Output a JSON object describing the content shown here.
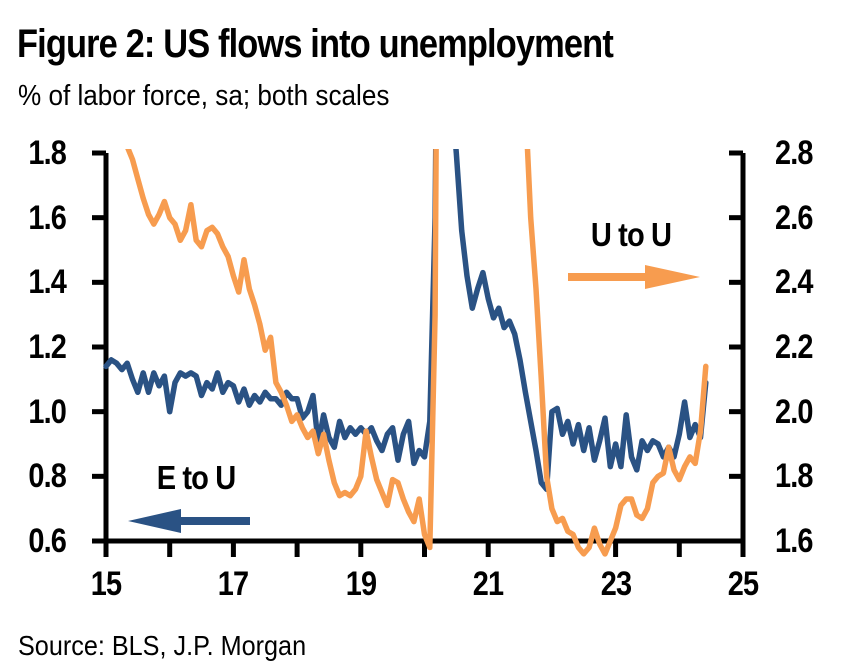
{
  "figure": {
    "title": "Figure 2: US flows into unemployment",
    "subtitle": "% of labor force, sa; both scales",
    "source": "Source: BLS, J.P. Morgan"
  },
  "colors": {
    "e_to_u_line": "#2A5284",
    "u_to_u_line": "#F79C4F",
    "axis": "#000000",
    "text": "#000000",
    "background": "#FFFFFF"
  },
  "chart_data": {
    "type": "line",
    "title": "Figure 2: US flows into unemployment",
    "subtitle": "% of labor force, sa; both scales",
    "grid": false,
    "legend_position": "in-plot arrow annotations",
    "x_axis": {
      "min": 15,
      "max": 25,
      "ticks": [
        {
          "value": 15,
          "label": "15"
        },
        {
          "value": 16,
          "label": ""
        },
        {
          "value": 17,
          "label": "17"
        },
        {
          "value": 18,
          "label": ""
        },
        {
          "value": 19,
          "label": "19"
        },
        {
          "value": 20,
          "label": ""
        },
        {
          "value": 21,
          "label": "21"
        },
        {
          "value": 22,
          "label": ""
        },
        {
          "value": 23,
          "label": "23"
        },
        {
          "value": 24,
          "label": ""
        },
        {
          "value": 25,
          "label": "25"
        }
      ]
    },
    "left_axis": {
      "min": 0.6,
      "max": 1.8,
      "ticks": [
        {
          "value": 1.8,
          "label": "1.8"
        },
        {
          "value": 1.6,
          "label": "1.6"
        },
        {
          "value": 1.4,
          "label": "1.4"
        },
        {
          "value": 1.2,
          "label": "1.2"
        },
        {
          "value": 1.0,
          "label": "1.0"
        },
        {
          "value": 0.8,
          "label": "0.8"
        },
        {
          "value": 0.6,
          "label": "0.6"
        }
      ]
    },
    "right_axis": {
      "min": 1.6,
      "max": 2.8,
      "ticks": [
        {
          "value": 2.8,
          "label": "2.8"
        },
        {
          "value": 2.6,
          "label": "2.6"
        },
        {
          "value": 2.4,
          "label": "2.4"
        },
        {
          "value": 2.2,
          "label": "2.2"
        },
        {
          "value": 2.0,
          "label": "2.0"
        },
        {
          "value": 1.8,
          "label": "1.8"
        },
        {
          "value": 1.6,
          "label": "1.6"
        }
      ]
    },
    "note": "Monthly data Jan-2015 to Jun-2024; values above axis maxima are clipped at the top of the plot (2020-21 COVID spike).",
    "series": [
      {
        "name": "E to U",
        "axis": "left",
        "color": "#2A5284",
        "x_start": 15.0,
        "x_step": 0.0833333,
        "values": [
          1.14,
          1.16,
          1.15,
          1.13,
          1.15,
          1.1,
          1.06,
          1.12,
          1.06,
          1.12,
          1.08,
          1.11,
          1.0,
          1.09,
          1.12,
          1.11,
          1.12,
          1.11,
          1.05,
          1.09,
          1.07,
          1.12,
          1.06,
          1.09,
          1.08,
          1.03,
          1.07,
          1.02,
          1.05,
          1.03,
          1.06,
          1.04,
          1.04,
          1.02,
          1.06,
          1.04,
          1.04,
          0.98,
          1.0,
          1.05,
          0.9,
          0.99,
          0.92,
          0.89,
          0.97,
          0.92,
          0.95,
          0.93,
          0.95,
          0.93,
          0.95,
          0.91,
          0.88,
          0.93,
          0.95,
          0.85,
          0.93,
          0.97,
          0.84,
          0.88,
          0.86,
          0.97,
          1.6,
          3.4,
          2.8,
          2.0,
          1.8,
          1.56,
          1.42,
          1.32,
          1.38,
          1.43,
          1.35,
          1.29,
          1.32,
          1.26,
          1.28,
          1.24,
          1.16,
          1.06,
          0.97,
          0.88,
          0.78,
          0.76,
          1.0,
          1.01,
          0.93,
          0.97,
          0.9,
          0.96,
          0.88,
          0.95,
          0.85,
          0.91,
          0.98,
          0.83,
          0.9,
          0.83,
          0.99,
          0.86,
          0.82,
          0.91,
          0.88,
          0.91,
          0.9,
          0.86,
          0.89,
          0.86,
          0.93,
          1.03,
          0.92,
          0.96,
          0.92,
          1.09
        ]
      },
      {
        "name": "U to U",
        "axis": "right",
        "color": "#F79C4F",
        "x_start": 15.0,
        "x_step": 0.0833333,
        "values": [
          2.96,
          2.93,
          2.9,
          2.86,
          2.82,
          2.78,
          2.72,
          2.66,
          2.61,
          2.58,
          2.61,
          2.65,
          2.6,
          2.58,
          2.53,
          2.56,
          2.64,
          2.53,
          2.51,
          2.56,
          2.57,
          2.55,
          2.51,
          2.48,
          2.42,
          2.37,
          2.47,
          2.38,
          2.33,
          2.27,
          2.19,
          2.23,
          2.09,
          2.06,
          2.02,
          1.97,
          1.99,
          1.95,
          1.92,
          1.94,
          1.87,
          1.93,
          1.85,
          1.78,
          1.74,
          1.75,
          1.74,
          1.76,
          1.8,
          1.94,
          1.86,
          1.79,
          1.75,
          1.71,
          1.79,
          1.78,
          1.73,
          1.69,
          1.66,
          1.73,
          1.62,
          1.58,
          2.3,
          5.0,
          4.8,
          4.6,
          4.4,
          4.2,
          4.0,
          3.9,
          3.8,
          3.7,
          3.6,
          3.55,
          3.5,
          3.45,
          3.4,
          3.3,
          3.2,
          2.95,
          2.6,
          2.38,
          2.1,
          1.8,
          1.7,
          1.66,
          1.67,
          1.63,
          1.62,
          1.58,
          1.56,
          1.58,
          1.64,
          1.59,
          1.56,
          1.6,
          1.64,
          1.71,
          1.73,
          1.73,
          1.68,
          1.67,
          1.7,
          1.78,
          1.8,
          1.81,
          1.89,
          1.82,
          1.79,
          1.83,
          1.86,
          1.84,
          1.94,
          2.14
        ]
      }
    ],
    "annotations": [
      {
        "text": "E to U",
        "arrow_direction": "left",
        "arrow_color": "#2A5284"
      },
      {
        "text": "U to U",
        "arrow_direction": "right",
        "arrow_color": "#F79C4F"
      }
    ]
  }
}
